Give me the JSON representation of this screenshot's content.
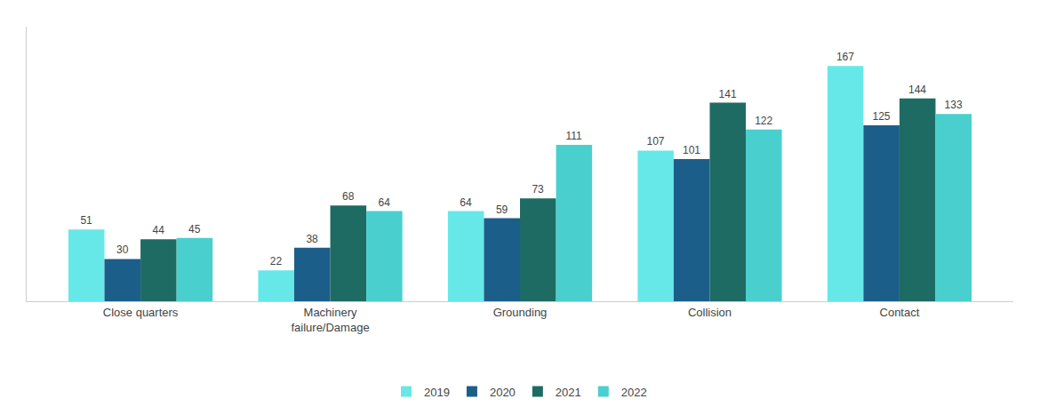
{
  "chart_data": {
    "type": "bar",
    "categories": [
      "Close quarters",
      "Machinery\nfailure/Damage",
      "Grounding",
      "Collision",
      "Contact"
    ],
    "series": [
      {
        "name": "2019",
        "color": "#67E8E8",
        "values": [
          51,
          22,
          64,
          107,
          167
        ]
      },
      {
        "name": "2020",
        "color": "#1C5E8A",
        "values": [
          30,
          38,
          59,
          101,
          125
        ]
      },
      {
        "name": "2021",
        "color": "#1E6B63",
        "values": [
          44,
          68,
          73,
          141,
          144
        ]
      },
      {
        "name": "2022",
        "color": "#4ACFCF",
        "values": [
          45,
          64,
          111,
          122,
          133
        ]
      }
    ],
    "ylim": [
      0,
      195
    ],
    "grid": false,
    "legend": "bottom",
    "data_labels": true,
    "tick_labels": "x"
  }
}
